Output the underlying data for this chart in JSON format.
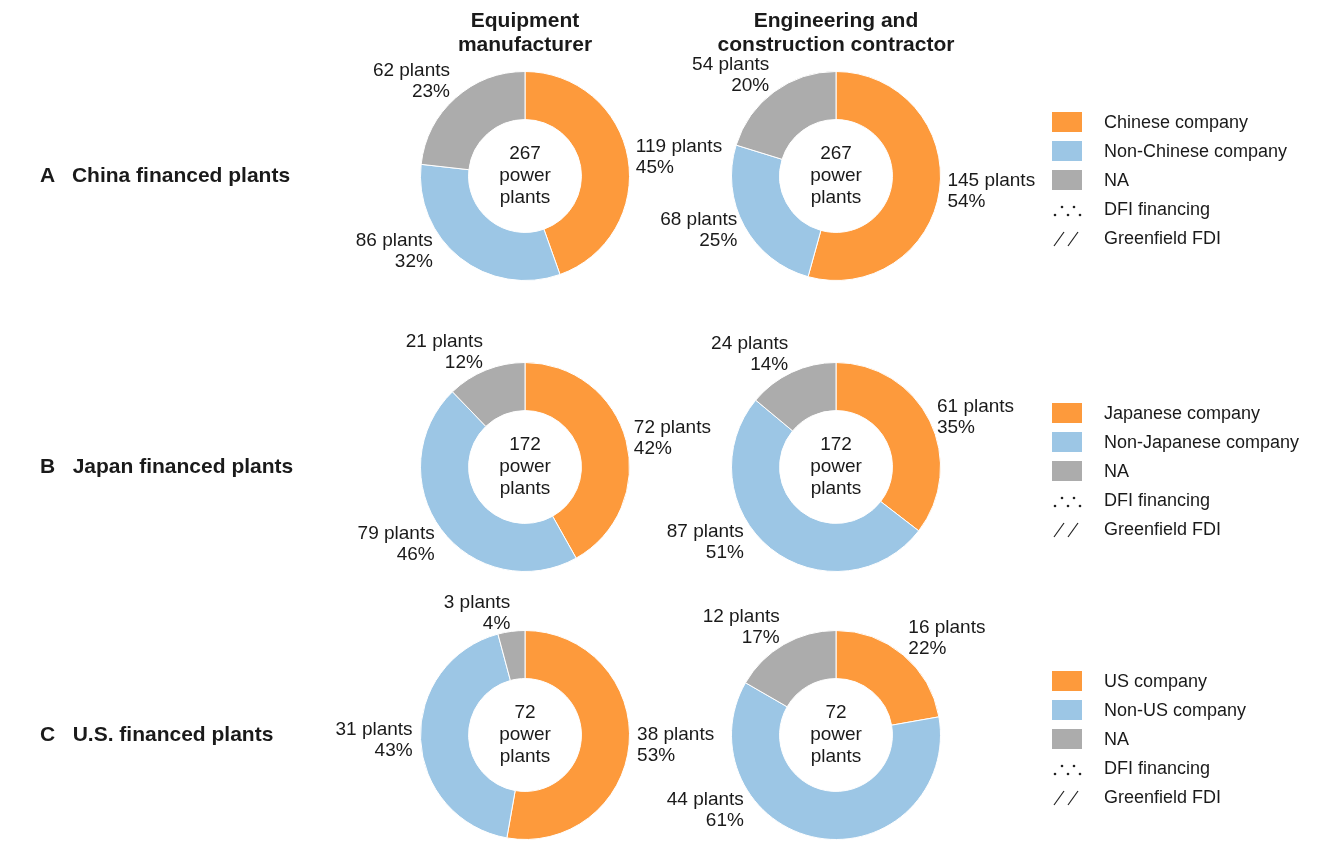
{
  "chart_data": [
    {
      "type": "donut",
      "title": "Equipment\nmanufacturer",
      "ylabel": "A   China financed plants",
      "categories": [
        "Chinese company",
        "Non-Chinese company",
        "NA"
      ],
      "values": [
        119,
        86,
        62
      ],
      "colors": [
        "#fd9a3c",
        "#9cc6e5",
        "#acacac"
      ],
      "value_labels": [
        "119 plants\n45%",
        "86 plants\n32%",
        "62 plants\n23%"
      ],
      "annotations": [
        "267\npower\nplants",
        "DFI financing",
        "Greenfield FDI"
      ],
      "legend": "right"
    },
    {
      "type": "donut",
      "title": "Engineering and\nconstruction contractor",
      "categories": [
        null,
        null,
        null
      ],
      "values": [
        145,
        68,
        54
      ],
      "colors": [
        "#fd9a3c",
        "#9cc6e5",
        "#acacac"
      ],
      "value_labels": [
        "145 plants\n54%",
        "68 plants\n25%",
        "54 plants\n20%"
      ],
      "annotations": [
        "267\npower\nplants"
      ]
    },
    {
      "type": "donut",
      "ylabel": "B   Japan financed plants",
      "categories": [
        "Japanese company",
        "Non-Japanese company",
        "NA"
      ],
      "values": [
        72,
        79,
        21
      ],
      "colors": [
        "#fd9a3c",
        "#9cc6e5",
        "#acacac"
      ],
      "value_labels": [
        "72 plants\n42%",
        "79 plants\n46%",
        "21 plants\n12%"
      ],
      "annotations": [
        "172\npower\nplants",
        "DFI financing",
        "Greenfield FDI"
      ],
      "legend": "right"
    },
    {
      "type": "donut",
      "categories": [
        null,
        null,
        null
      ],
      "values": [
        61,
        87,
        24
      ],
      "colors": [
        "#fd9a3c",
        "#9cc6e5",
        "#acacac"
      ],
      "value_labels": [
        "61 plants\n35%",
        "87 plants\n51%",
        "24 plants\n14%"
      ],
      "annotations": [
        "172\npower\nplants"
      ]
    },
    {
      "type": "donut",
      "ylabel": "C   U.S. financed plants",
      "categories": [
        "US company",
        "Non-US company",
        "NA"
      ],
      "values": [
        38,
        31,
        3
      ],
      "colors": [
        "#fd9a3c",
        "#9cc6e5",
        "#acacac"
      ],
      "value_labels": [
        "38 plants\n53%",
        "31 plants\n43%",
        "3 plants\n4%"
      ],
      "annotations": [
        "72\npower\nplants",
        "DFI financing",
        "Greenfield FDI"
      ],
      "legend": "right"
    },
    {
      "type": "donut",
      "categories": [
        null,
        null,
        null
      ],
      "values": [
        16,
        44,
        12
      ],
      "colors": [
        "#fd9a3c",
        "#9cc6e5",
        "#acacac"
      ],
      "value_labels": [
        "16 plants\n22%",
        "44 plants\n61%",
        "12 plants\n17%"
      ],
      "annotations": [
        "72\npower\nplants"
      ]
    }
  ]
}
